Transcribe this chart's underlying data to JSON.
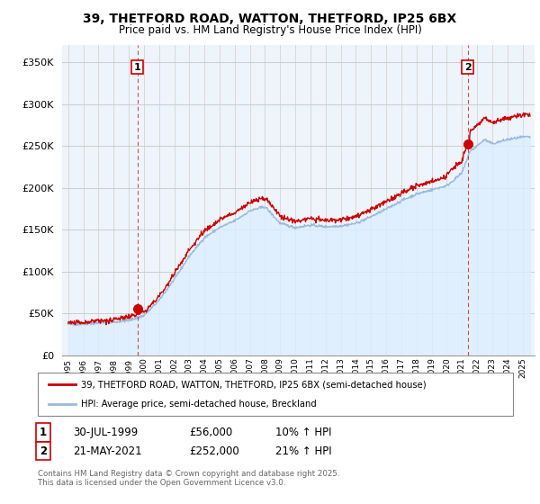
{
  "title": "39, THETFORD ROAD, WATTON, THETFORD, IP25 6BX",
  "subtitle": "Price paid vs. HM Land Registry's House Price Index (HPI)",
  "yticks": [
    0,
    50000,
    100000,
    150000,
    200000,
    250000,
    300000,
    350000
  ],
  "ylim": [
    0,
    370000
  ],
  "xlim_start": 1994.6,
  "xlim_end": 2025.8,
  "legend_label_red": "39, THETFORD ROAD, WATTON, THETFORD, IP25 6BX (semi-detached house)",
  "legend_label_blue": "HPI: Average price, semi-detached house, Breckland",
  "sale1_date": "30-JUL-1999",
  "sale1_price": "£56,000",
  "sale1_hpi": "10% ↑ HPI",
  "sale2_date": "21-MAY-2021",
  "sale2_price": "£252,000",
  "sale2_hpi": "21% ↑ HPI",
  "footnote": "Contains HM Land Registry data © Crown copyright and database right 2025.\nThis data is licensed under the Open Government Licence v3.0.",
  "color_red": "#cc0000",
  "color_blue_line": "#99bbdd",
  "color_blue_fill": "#ddeeff",
  "color_grid": "#cccccc",
  "color_bg_chart": "#eef4fb",
  "background_fig": "#ffffff",
  "marker1_x": 1999.58,
  "marker1_y": 56000,
  "marker2_x": 2021.38,
  "marker2_y": 252000,
  "title_fontsize": 10,
  "subtitle_fontsize": 8.5
}
